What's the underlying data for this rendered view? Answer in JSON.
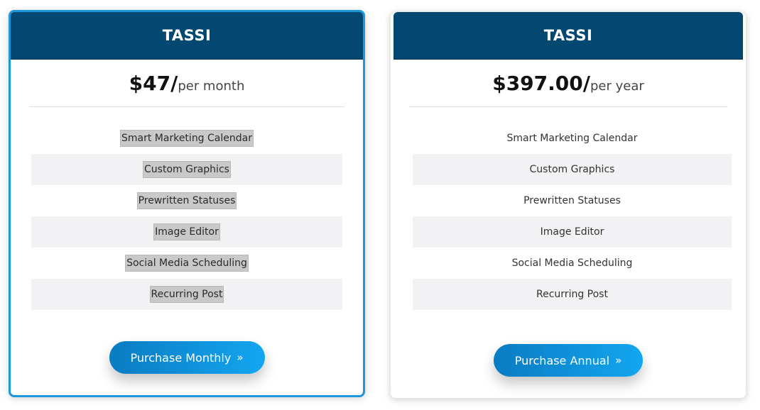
{
  "plans": [
    {
      "title": "TASSI",
      "price": "$47/",
      "period": "per month",
      "features": [
        "Smart Marketing Calendar",
        "Custom Graphics",
        "Prewritten Statuses",
        "Image Editor",
        "Social Media Scheduling",
        "Recurring Post"
      ],
      "button_label": "Purchase Monthly",
      "button_icon": "double-chevron-right-icon"
    },
    {
      "title": "TASSI",
      "price": "$397.00/",
      "period": "per year",
      "features": [
        "Smart Marketing Calendar",
        "Custom Graphics",
        "Prewritten Statuses",
        "Image Editor",
        "Social Media Scheduling",
        "Recurring Post"
      ],
      "button_label": "Purchase Annual",
      "button_icon": "double-chevron-right-icon"
    }
  ],
  "colors": {
    "header_bg": "#034870",
    "selected_border": "#1e96dc",
    "button_start": "#0a7bc2",
    "button_end": "#13a6f0",
    "stripe_bg": "#f2f2f4",
    "highlight_bg": "#c9c9c9"
  }
}
